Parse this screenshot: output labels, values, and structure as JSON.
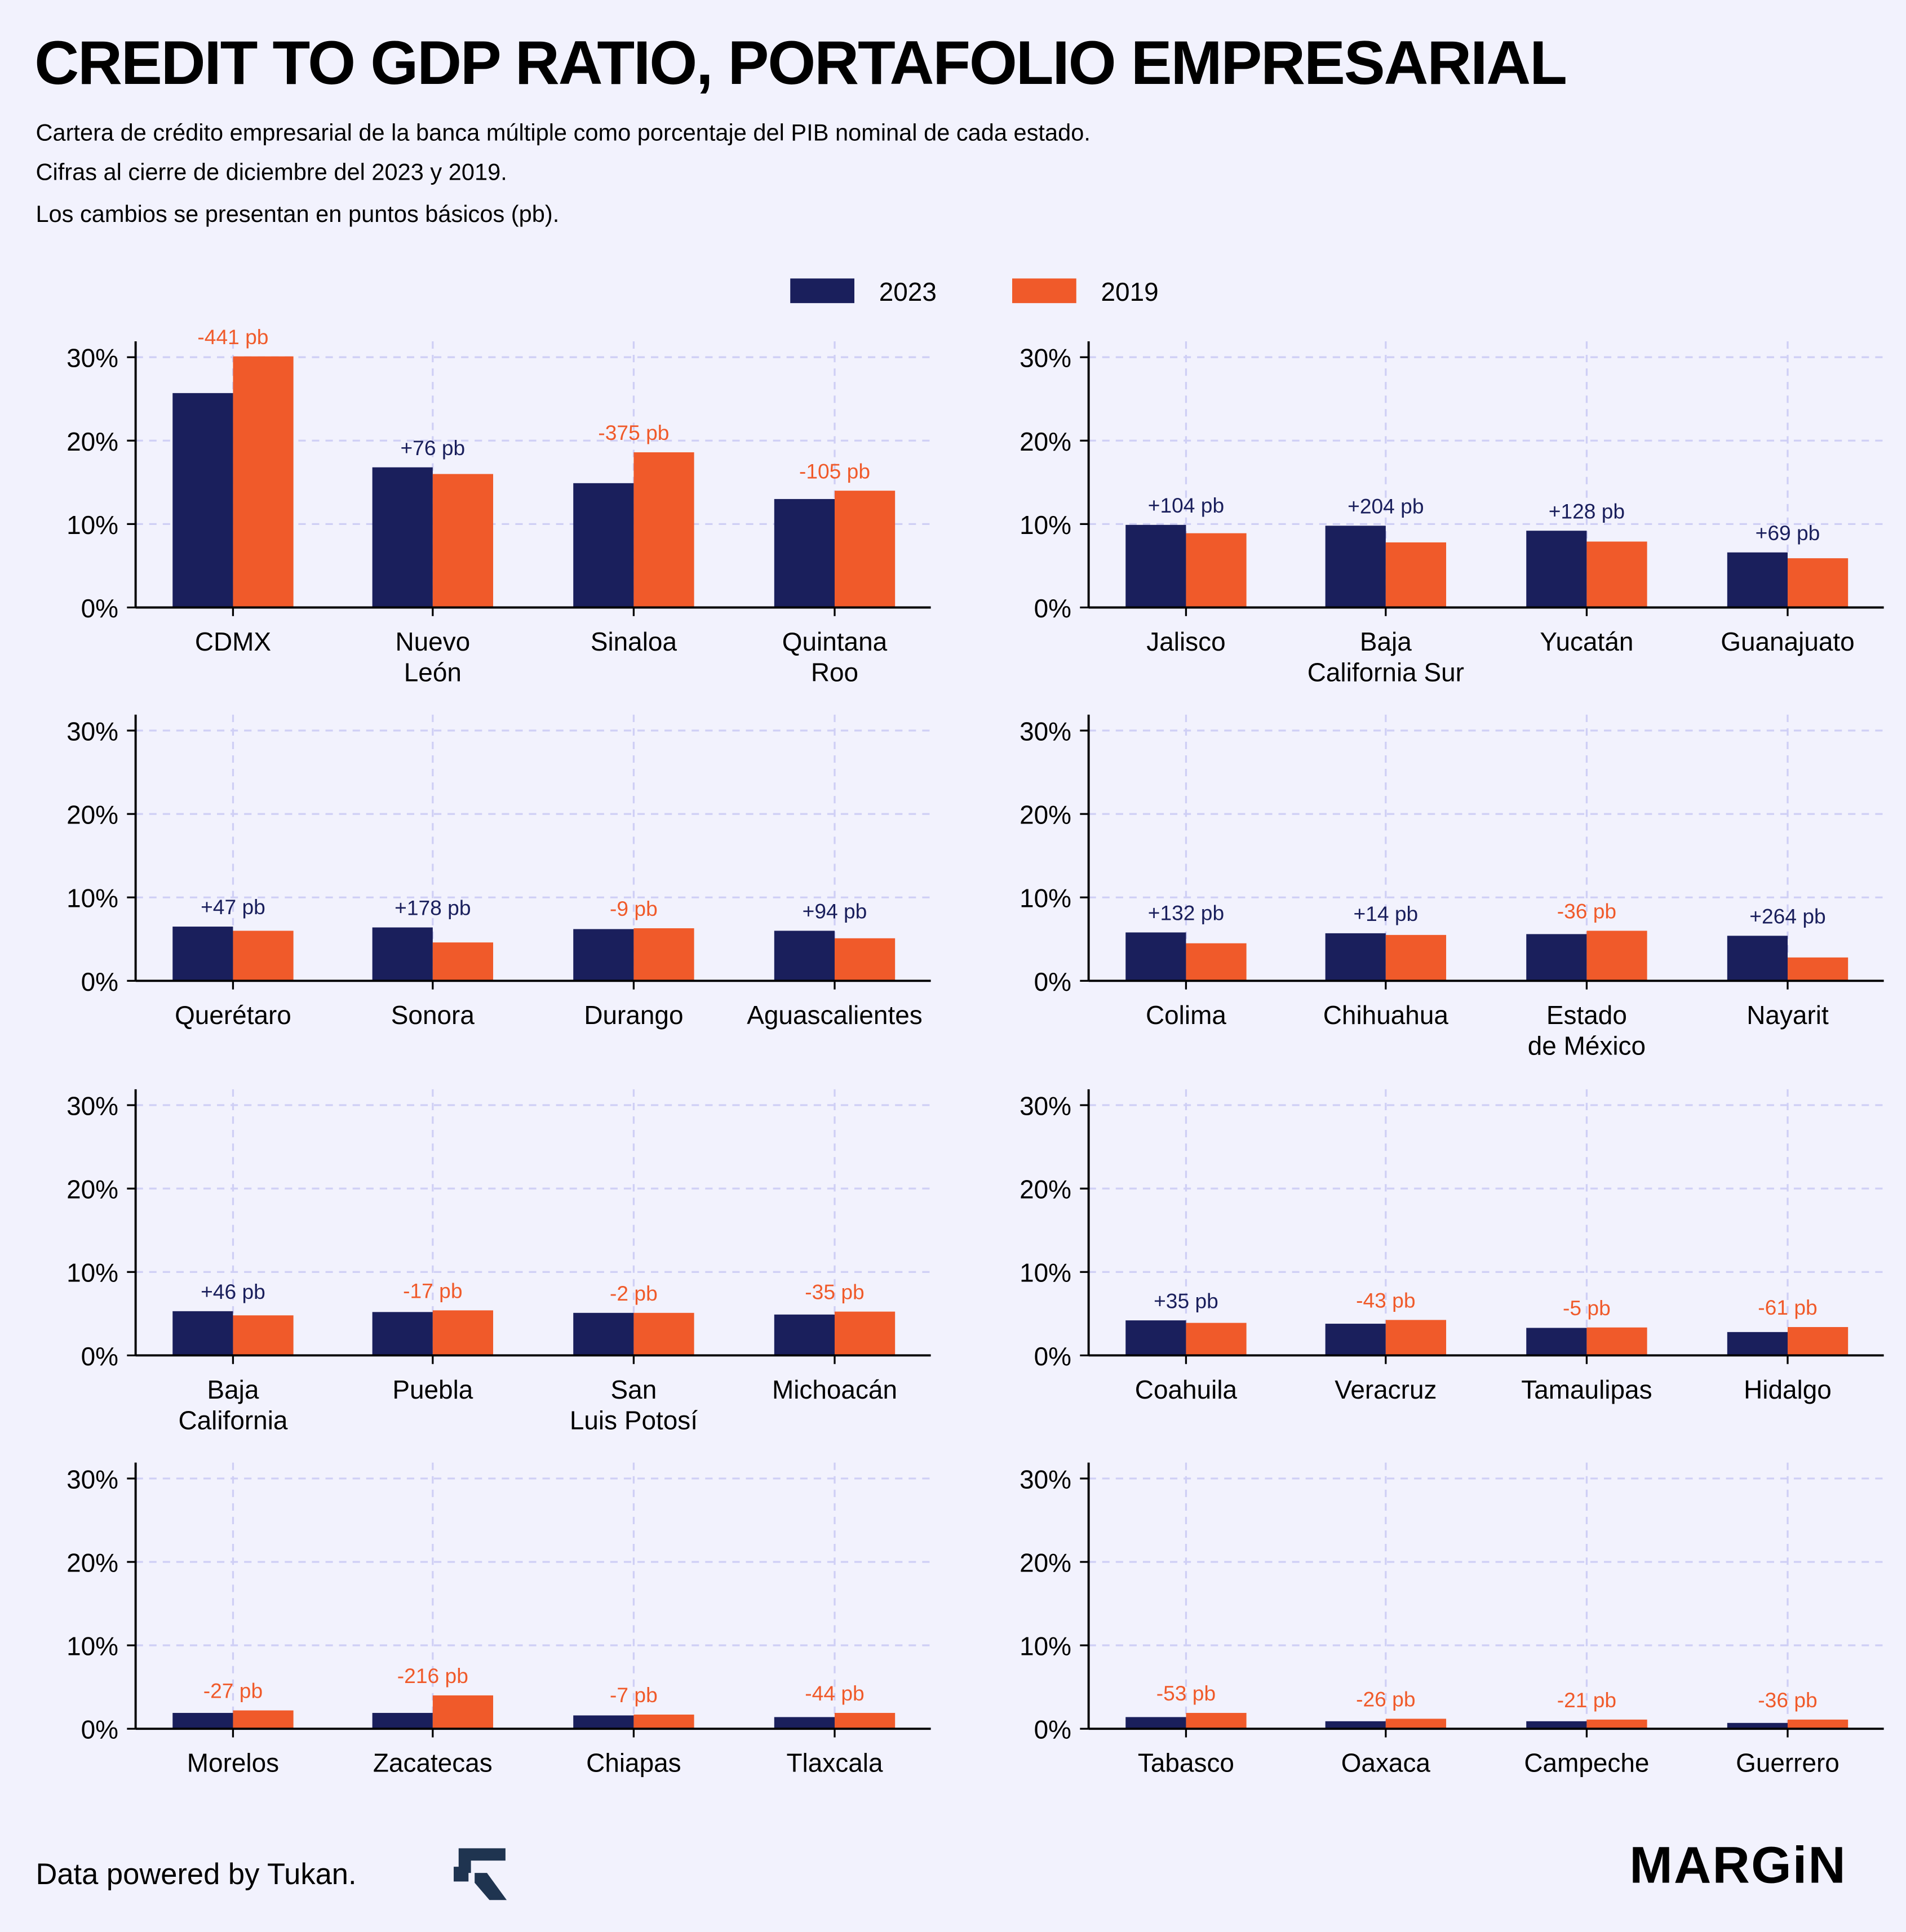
{
  "title": "CREDIT TO GDP RATIO, PORTAFOLIO EMPRESARIAL",
  "subtitle": [
    "Cartera de crédito empresarial de la banca múltiple como porcentaje del PIB nominal de cada estado.",
    "Cifras al cierre de diciembre del 2023 y 2019.",
    "Los cambios se presentan en puntos básicos (pb)."
  ],
  "footer": "Data powered by Tukan.",
  "brand": "MARGiN",
  "colors": {
    "2023": "#1a1f5c",
    "2019": "#f05a2a",
    "grid": "#cfcff5",
    "bg": "#f2f2fd"
  },
  "chart_data": {
    "type": "bar",
    "legend": [
      "2023",
      "2019"
    ],
    "legend_position": "top-center",
    "ylim": [
      0,
      32
    ],
    "yticks": [
      "0%",
      "10%",
      "20%",
      "30%"
    ],
    "panels": [
      {
        "categories": [
          [
            "CDMX"
          ],
          [
            "Nuevo",
            "León"
          ],
          [
            "Sinaloa"
          ],
          [
            "Quintana",
            "Roo"
          ]
        ],
        "v2023": [
          25.7,
          16.8,
          14.9,
          13.0
        ],
        "v2019": [
          30.1,
          16.0,
          18.6,
          14.0
        ],
        "labels": [
          "-441 pb",
          "+76 pb",
          "-375 pb",
          "-105 pb"
        ]
      },
      {
        "categories": [
          [
            "Jalisco"
          ],
          [
            "Baja",
            "California Sur"
          ],
          [
            "Yucatán"
          ],
          [
            "Guanajuato"
          ]
        ],
        "v2023": [
          9.9,
          9.8,
          9.2,
          6.6
        ],
        "v2019": [
          8.9,
          7.8,
          7.9,
          5.9
        ],
        "labels": [
          "+104 pb",
          "+204 pb",
          "+128 pb",
          "+69 pb"
        ]
      },
      {
        "categories": [
          [
            "Querétaro"
          ],
          [
            "Sonora"
          ],
          [
            "Durango"
          ],
          [
            "Aguascalientes"
          ]
        ],
        "v2023": [
          6.5,
          6.4,
          6.2,
          6.0
        ],
        "v2019": [
          6.0,
          4.6,
          6.3,
          5.1
        ],
        "labels": [
          "+47 pb",
          "+178 pb",
          "-9 pb",
          "+94 pb"
        ]
      },
      {
        "categories": [
          [
            "Colima"
          ],
          [
            "Chihuahua"
          ],
          [
            "Estado",
            "de México"
          ],
          [
            "Nayarit"
          ]
        ],
        "v2023": [
          5.8,
          5.7,
          5.6,
          5.4
        ],
        "v2019": [
          4.5,
          5.5,
          6.0,
          2.8
        ],
        "labels": [
          "+132 pb",
          "+14 pb",
          "-36 pb",
          "+264 pb"
        ]
      },
      {
        "categories": [
          [
            "Baja",
            "California"
          ],
          [
            "Puebla"
          ],
          [
            "San",
            "Luis Potosí"
          ],
          [
            "Michoacán"
          ]
        ],
        "v2023": [
          5.3,
          5.2,
          5.1,
          4.9
        ],
        "v2019": [
          4.8,
          5.4,
          5.1,
          5.25
        ],
        "labels": [
          "+46 pb",
          "-17 pb",
          "-2 pb",
          "-35 pb"
        ]
      },
      {
        "categories": [
          [
            "Coahuila"
          ],
          [
            "Veracruz"
          ],
          [
            "Tamaulipas"
          ],
          [
            "Hidalgo"
          ]
        ],
        "v2023": [
          4.2,
          3.8,
          3.3,
          2.8
        ],
        "v2019": [
          3.9,
          4.25,
          3.35,
          3.4
        ],
        "labels": [
          "+35 pb",
          "-43 pb",
          "-5 pb",
          "-61 pb"
        ]
      },
      {
        "categories": [
          [
            "Morelos"
          ],
          [
            "Zacatecas"
          ],
          [
            "Chiapas"
          ],
          [
            "Tlaxcala"
          ]
        ],
        "v2023": [
          1.9,
          1.9,
          1.6,
          1.4
        ],
        "v2019": [
          2.2,
          4.0,
          1.7,
          1.9
        ],
        "labels": [
          "-27 pb",
          "-216 pb",
          "-7 pb",
          "-44 pb"
        ]
      },
      {
        "categories": [
          [
            "Tabasco"
          ],
          [
            "Oaxaca"
          ],
          [
            "Campeche"
          ],
          [
            "Guerrero"
          ]
        ],
        "v2023": [
          1.4,
          0.9,
          0.9,
          0.7
        ],
        "v2019": [
          1.9,
          1.2,
          1.1,
          1.1
        ],
        "labels": [
          "-53 pb",
          "-26 pb",
          "-21 pb",
          "-36 pb"
        ]
      }
    ]
  }
}
